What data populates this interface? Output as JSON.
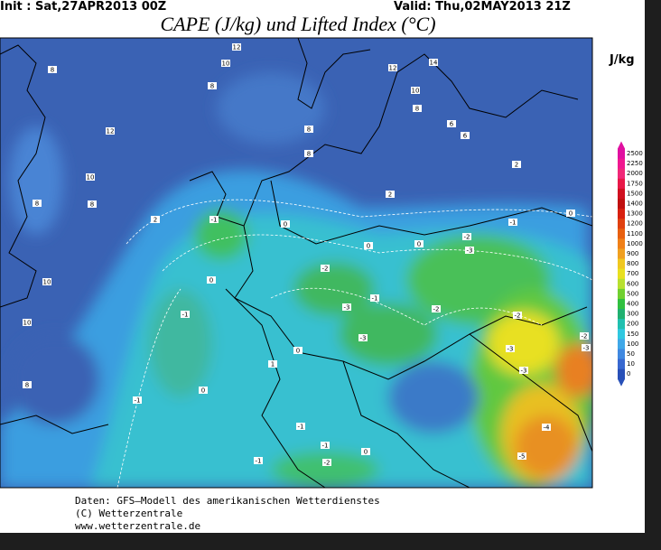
{
  "header": {
    "init": "Init : Sat,27APR2013 00Z",
    "valid": "Valid: Thu,02MAY2013 21Z",
    "title": "CAPE (J/kg) und Lifted Index (°C)"
  },
  "legend": {
    "unit": "J/kg",
    "levels": [
      2500,
      2250,
      2000,
      1750,
      1500,
      1400,
      1300,
      1200,
      1100,
      1000,
      900,
      800,
      700,
      600,
      500,
      400,
      300,
      200,
      150,
      100,
      50,
      10,
      0
    ],
    "colors": [
      "#e010a0",
      "#f01890",
      "#f02878",
      "#e81848",
      "#d01020",
      "#c01010",
      "#d82010",
      "#e04010",
      "#e86010",
      "#f08018",
      "#f0a020",
      "#f0c820",
      "#e8e020",
      "#b8e030",
      "#70d030",
      "#30c040",
      "#20b070",
      "#20c0b0",
      "#30c8e0",
      "#40a8e8",
      "#4088e0",
      "#3868d0",
      "#2850b8"
    ]
  },
  "map": {
    "labels": [
      "12",
      "10",
      "8",
      "12",
      "14",
      "10",
      "8",
      "8",
      "12",
      "6",
      "6",
      "8",
      "8",
      "10",
      "8",
      "8",
      "2",
      "2",
      "2",
      "-1",
      "0",
      "-1",
      "0",
      "-2",
      "-3",
      "0",
      "0",
      "-2",
      "0",
      "10",
      "-1",
      "-3",
      "-2",
      "-1",
      "-2",
      "10",
      "-2",
      "-3",
      "-3",
      "-3",
      "0",
      "-3",
      "1",
      "-1",
      "0",
      "-4",
      "-5",
      "-1",
      "-2",
      "0",
      "-1",
      "-1",
      "8"
    ]
  },
  "footer": {
    "lines": [
      "Daten: GFS–Modell des amerikanischen Wetterdienstes",
      "(C) Wetterzentrale",
      "www.wetterzentrale.de"
    ]
  }
}
